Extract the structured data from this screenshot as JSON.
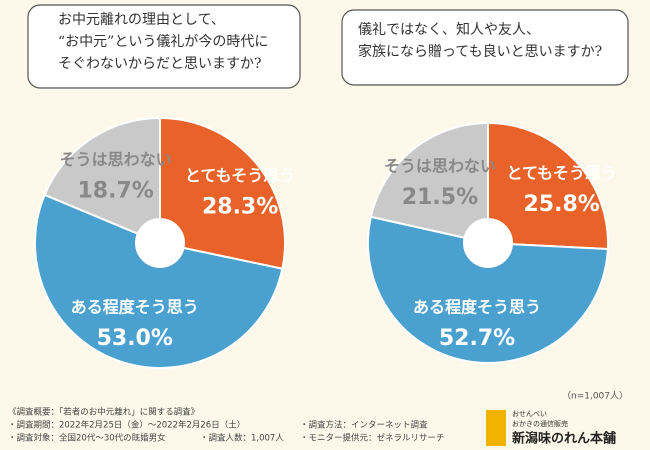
{
  "chart_data": [
    {
      "type": "pie",
      "title": [
        "お中元離れの理由として、",
        "“お中元”という儀礼が今の時代に",
        "そぐわないからだと思いますか?"
      ],
      "categories": [
        "とてもそう思う",
        "ある程度そう思う",
        "そうは思わない"
      ],
      "values": [
        28.3,
        53.0,
        18.7
      ],
      "value_labels": [
        "28.3%",
        "53.0%",
        "18.7%"
      ],
      "colors": [
        "#e8622a",
        "#4aa0cf",
        "#c9c9c9"
      ]
    },
    {
      "type": "pie",
      "title": [
        "儀礼ではなく、知人や友人、",
        "家族になら贈っても良いと思いますか?"
      ],
      "categories": [
        "とてもそう思う",
        "ある程度そう思う",
        "そうは思わない"
      ],
      "values": [
        25.8,
        52.7,
        21.5
      ],
      "value_labels": [
        "25.8%",
        "52.7%",
        "21.5%"
      ],
      "colors": [
        "#e8622a",
        "#4aa0cf",
        "#c9c9c9"
      ]
    }
  ],
  "sample": "（n=1,007人）",
  "notes": [
    "《調査概要：「若者のお中元離れ」に関する調査》",
    "・調査期間：2022年2月25日（金）～2022年2月26日（土）",
    "・調査対象：全国20代～30代の既婚男女",
    "・調査人数：1,007人",
    "・調査方法：インターネット調査",
    "・モニター提供元：ゼネラルリサーチ"
  ],
  "logo": [
    "おせんべい",
    "おかきの通信販売",
    "新潟味のれん本舗"
  ]
}
